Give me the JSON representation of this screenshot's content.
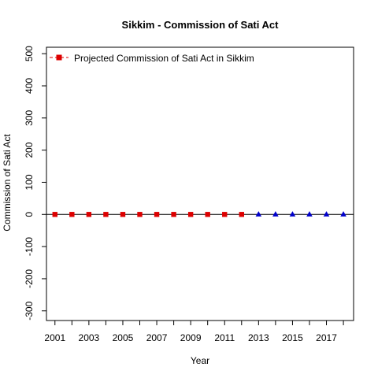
{
  "chart_data": {
    "type": "scatter",
    "title": "Sikkim  -  Commission of Sati Act",
    "xlabel": "Year",
    "ylabel": "Commission of Sati Act",
    "xlim": [
      2000.5,
      2018.6
    ],
    "ylim": [
      -330,
      520
    ],
    "x_ticks": [
      2001,
      2002,
      2003,
      2004,
      2005,
      2006,
      2007,
      2008,
      2009,
      2010,
      2011,
      2012,
      2013,
      2014,
      2015,
      2016,
      2017,
      2018
    ],
    "x_tick_labels": [
      "2001",
      "",
      "2003",
      "",
      "2005",
      "",
      "2007",
      "",
      "2009",
      "",
      "2011",
      "",
      "2013",
      "",
      "2015",
      "",
      "2017",
      ""
    ],
    "y_ticks": [
      -300,
      -200,
      -100,
      0,
      100,
      200,
      300,
      400,
      500
    ],
    "y_tick_labels": [
      "-300",
      "-200",
      "-100",
      "0",
      "100",
      "200",
      "300",
      "400",
      "500"
    ],
    "reference_line_y": 0,
    "legend": {
      "placement": "top-left",
      "entries": [
        "Projected  Commission of Sati Act  in  Sikkim"
      ]
    },
    "series": [
      {
        "name": "Projected  Commission of Sati Act  in  Sikkim",
        "marker": "square",
        "color": "#dd0000",
        "line": "dashed",
        "x": [
          2001,
          2002,
          2003,
          2004,
          2005,
          2006,
          2007,
          2008,
          2009,
          2010,
          2011,
          2012
        ],
        "y": [
          0,
          0,
          0,
          0,
          0,
          0,
          0,
          0,
          0,
          0,
          0,
          0
        ]
      },
      {
        "marker": "triangle",
        "color": "#0000cc",
        "x": [
          2013,
          2014,
          2015,
          2016,
          2017,
          2018
        ],
        "y": [
          0,
          0,
          0,
          0,
          0,
          0
        ]
      }
    ]
  }
}
